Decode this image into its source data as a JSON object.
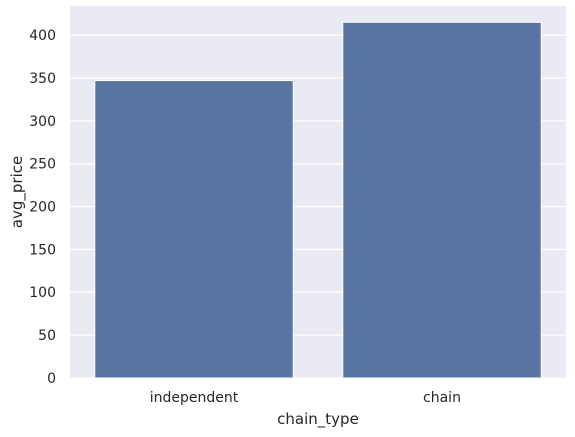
{
  "chart_data": {
    "type": "bar",
    "categories": [
      "independent",
      "chain"
    ],
    "values": [
      347,
      415
    ],
    "xlabel": "chain_type",
    "ylabel": "avg_price",
    "ylim": [
      0,
      434
    ],
    "yticks": [
      0,
      50,
      100,
      150,
      200,
      250,
      300,
      350,
      400
    ],
    "grid": true,
    "colors": {
      "plot_background": "#eaeaf2",
      "grid": "#ffffff",
      "bar": "#5975a4",
      "text": "#262626"
    }
  }
}
